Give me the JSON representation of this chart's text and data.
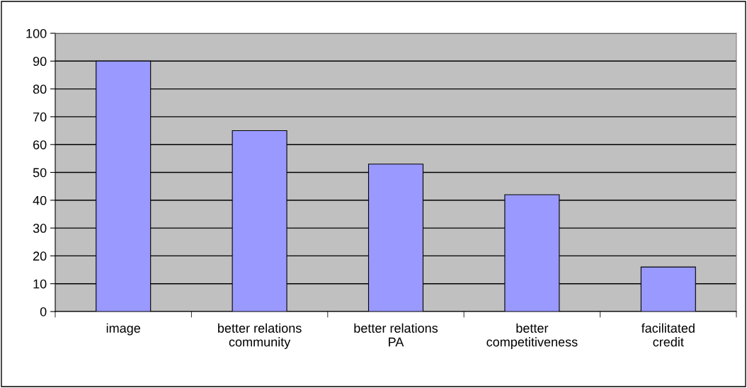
{
  "chart_data": {
    "type": "bar",
    "categories": [
      "image",
      "better relations\ncommunity",
      "better relations\nPA",
      "better\ncompetitiveness",
      "facilitated\ncredit"
    ],
    "values": [
      90,
      65,
      53,
      42,
      16
    ],
    "color": "#9999ff",
    "ylim": [
      0,
      100
    ],
    "yticks": [
      0,
      10,
      20,
      30,
      40,
      50,
      60,
      70,
      80,
      90,
      100
    ],
    "grid": "y",
    "legend": false
  }
}
